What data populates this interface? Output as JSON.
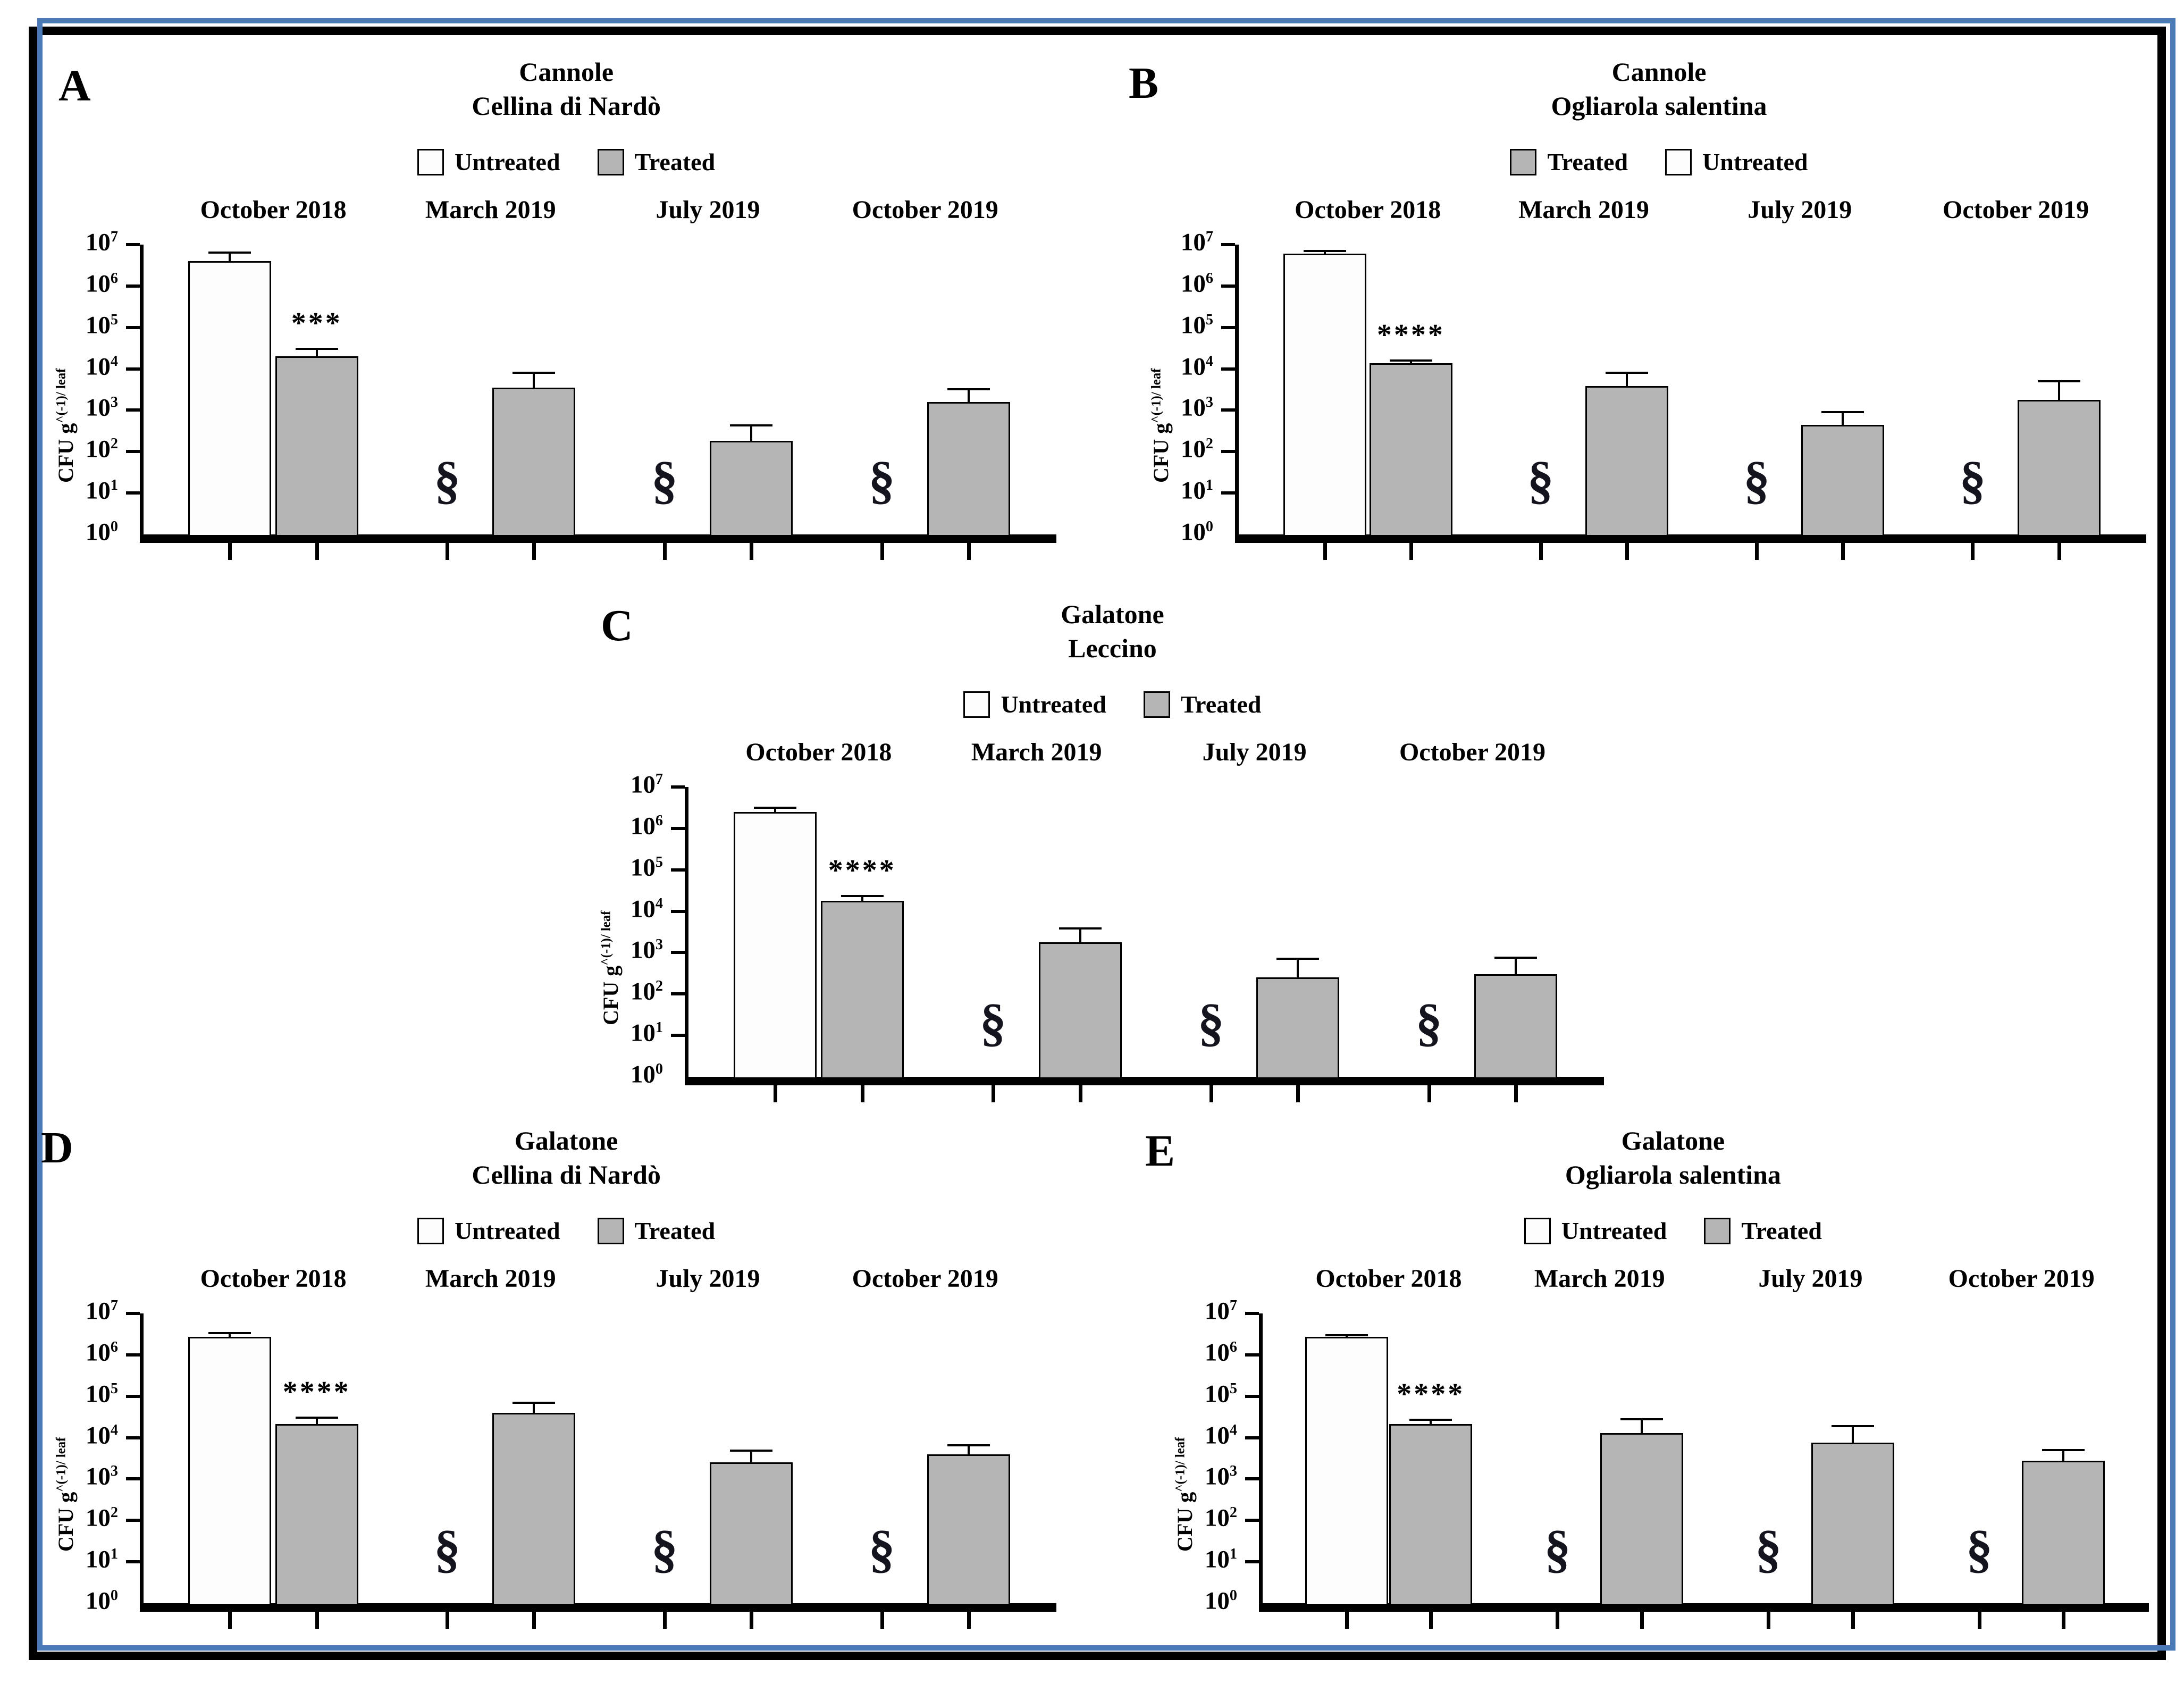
{
  "figure": {
    "frame_colors": {
      "outer_black": "#000000",
      "blue": "#4a7ab8"
    },
    "bar_colors": {
      "untreated_fill": "#fdfdfd",
      "treated_fill": "#b5b5b5",
      "border": "#000000"
    },
    "timepoints": [
      "October 2018",
      "March 2019",
      "July 2019",
      "October 2019"
    ],
    "legend_labels": {
      "untreated": "Untreated",
      "treated": "Treated"
    },
    "missing_marker": "§",
    "y_axis": {
      "label_main": "CFU g",
      "label_sup": "^(-1)/ leaf",
      "tick_base": "10",
      "tick_exponents": [
        7,
        6,
        5,
        4,
        3,
        2,
        1,
        0
      ],
      "scale": "log10",
      "ylim": [
        1,
        10000000
      ]
    }
  },
  "chart_data": [
    {
      "panel": "A",
      "type": "bar",
      "location": "Cannole",
      "cultivar": "Cellina di Nardò",
      "legend_order": [
        "Untreated",
        "Treated"
      ],
      "y_scale": "log10",
      "ylim": [
        1,
        10000000
      ],
      "categories": [
        "October 2018",
        "March 2019",
        "July 2019",
        "October 2019"
      ],
      "series": [
        {
          "name": "Untreated",
          "values": [
            4000000,
            null,
            null,
            null
          ],
          "error_top": [
            6500000,
            null,
            null,
            null
          ]
        },
        {
          "name": "Treated",
          "values": [
            20000,
            3500,
            180,
            1600
          ],
          "error_top": [
            30000,
            8000,
            430,
            3200
          ]
        }
      ],
      "significance": {
        "stars": "***",
        "series": "Treated",
        "category_index": 0
      },
      "missing_untreated_marked": [
        "March 2019",
        "July 2019",
        "October 2019"
      ]
    },
    {
      "panel": "B",
      "type": "bar",
      "location": "Cannole",
      "cultivar": "Ogliarola salentina",
      "legend_order": [
        "Treated",
        "Untreated"
      ],
      "y_scale": "log10",
      "ylim": [
        1,
        10000000
      ],
      "categories": [
        "October 2018",
        "March 2019",
        "July 2019",
        "October 2019"
      ],
      "series": [
        {
          "name": "Untreated",
          "values": [
            6000000,
            null,
            null,
            null
          ],
          "error_top": [
            7000000,
            null,
            null,
            null
          ]
        },
        {
          "name": "Treated",
          "values": [
            13500,
            3800,
            440,
            1800
          ],
          "error_top": [
            16000,
            8000,
            900,
            5000
          ]
        }
      ],
      "significance": {
        "stars": "****",
        "series": "Treated",
        "category_index": 0
      },
      "missing_untreated_marked": [
        "March 2019",
        "July 2019",
        "October 2019"
      ]
    },
    {
      "panel": "C",
      "type": "bar",
      "location": "Galatone",
      "cultivar": "Leccino",
      "legend_order": [
        "Untreated",
        "Treated"
      ],
      "y_scale": "log10",
      "ylim": [
        1,
        10000000
      ],
      "categories": [
        "October 2018",
        "March 2019",
        "July 2019",
        "October 2019"
      ],
      "series": [
        {
          "name": "Untreated",
          "values": [
            2500000,
            null,
            null,
            null
          ],
          "error_top": [
            3200000,
            null,
            null,
            null
          ]
        },
        {
          "name": "Treated",
          "values": [
            18000,
            1800,
            250,
            300
          ],
          "error_top": [
            23000,
            3800,
            700,
            750
          ]
        }
      ],
      "significance": {
        "stars": "****",
        "series": "Treated",
        "category_index": 0
      },
      "missing_untreated_marked": [
        "March 2019",
        "July 2019",
        "October 2019"
      ]
    },
    {
      "panel": "D",
      "type": "bar",
      "location": "Galatone",
      "cultivar": "Cellina di Nardò",
      "legend_order": [
        "Untreated",
        "Treated"
      ],
      "y_scale": "log10",
      "ylim": [
        1,
        10000000
      ],
      "categories": [
        "October 2018",
        "March 2019",
        "July 2019",
        "October 2019"
      ],
      "series": [
        {
          "name": "Untreated",
          "values": [
            2700000,
            null,
            null,
            null
          ],
          "error_top": [
            3300000,
            null,
            null,
            null
          ]
        },
        {
          "name": "Treated",
          "values": [
            21000,
            40000,
            2500,
            4000
          ],
          "error_top": [
            30000,
            70000,
            4800,
            6500
          ]
        }
      ],
      "significance": {
        "stars": "****",
        "series": "Treated",
        "category_index": 0
      },
      "missing_untreated_marked": [
        "March 2019",
        "July 2019",
        "October 2019"
      ]
    },
    {
      "panel": "E",
      "type": "bar",
      "location": "Galatone",
      "cultivar": "Ogliarola salentina",
      "legend_order": [
        "Untreated",
        "Treated"
      ],
      "y_scale": "log10",
      "ylim": [
        1,
        10000000
      ],
      "categories": [
        "October 2018",
        "March 2019",
        "July 2019",
        "October 2019"
      ],
      "series": [
        {
          "name": "Untreated",
          "values": [
            2700000,
            null,
            null,
            null
          ],
          "error_top": [
            3000000,
            null,
            null,
            null
          ]
        },
        {
          "name": "Treated",
          "values": [
            21000,
            13000,
            7500,
            2800
          ],
          "error_top": [
            27000,
            28000,
            19000,
            5000
          ]
        }
      ],
      "significance": {
        "stars": "****",
        "series": "Treated",
        "category_index": 0
      },
      "missing_untreated_marked": [
        "March 2019",
        "July 2019",
        "October 2019"
      ]
    }
  ]
}
